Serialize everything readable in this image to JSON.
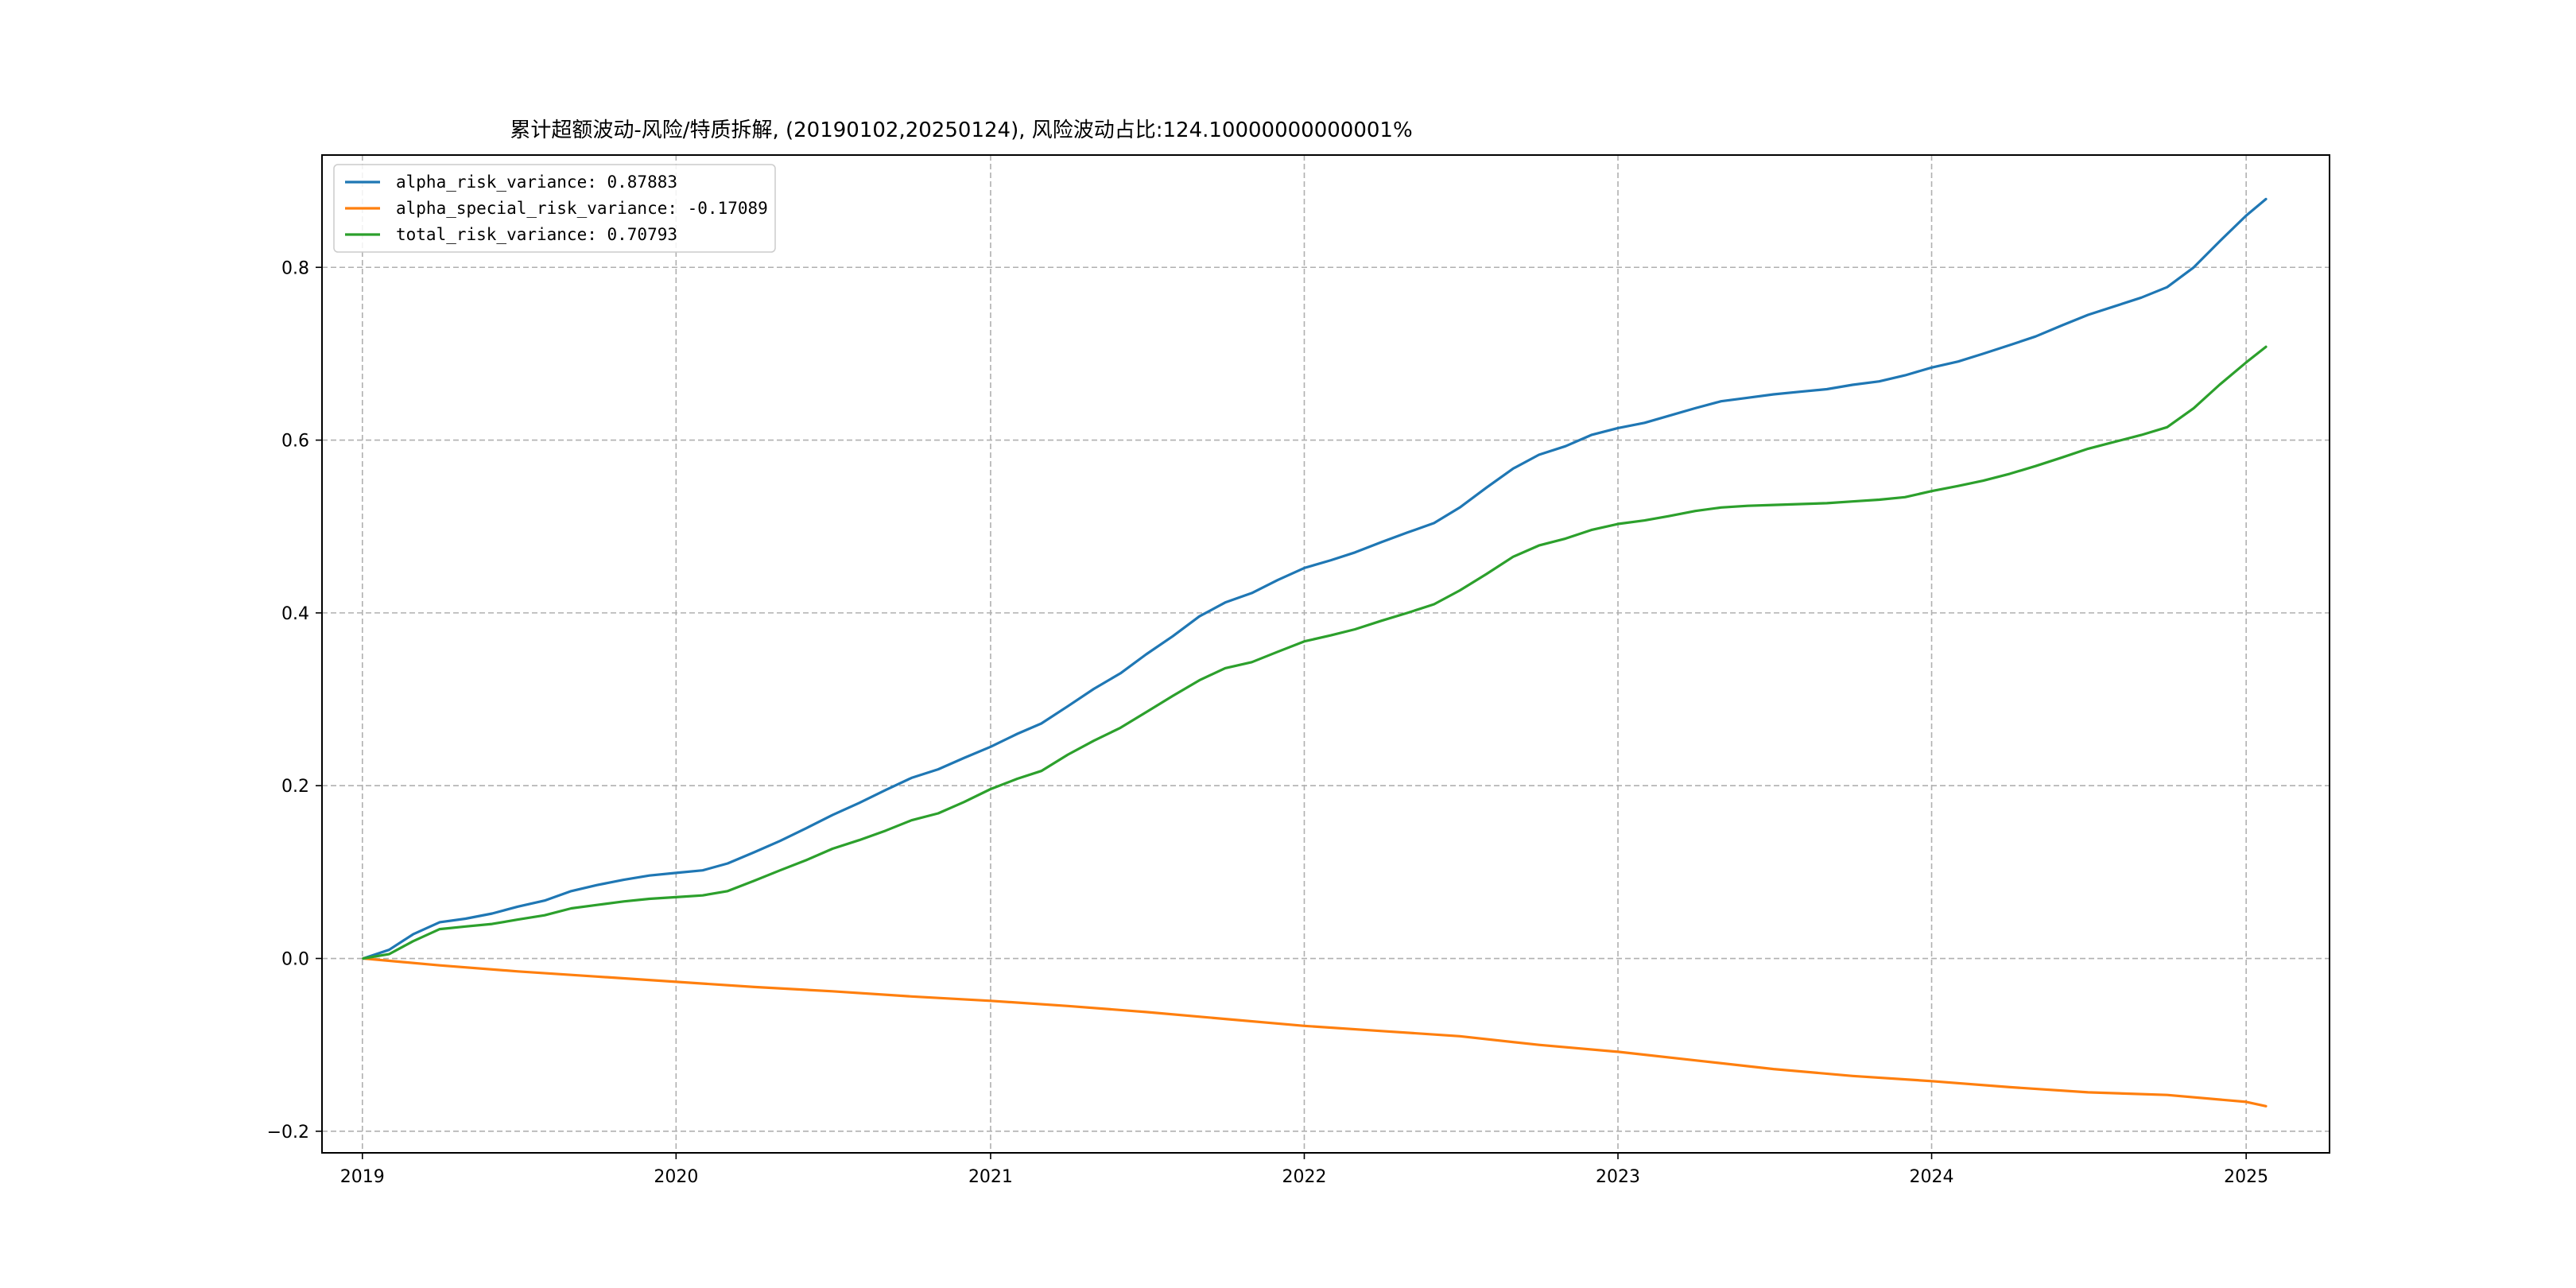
{
  "chart_data": {
    "type": "line",
    "title": "累计超额波动-风险/特质拆解, (20190102,20250124), 风险波动占比:124.10000000000001%",
    "xlabel": "",
    "ylabel": "",
    "x_ticks": [
      "2019",
      "2020",
      "2021",
      "2022",
      "2023",
      "2024",
      "2025"
    ],
    "y_ticks": [
      "−0.2",
      "0.0",
      "0.2",
      "0.4",
      "0.6",
      "0.8"
    ],
    "xlim": [
      "2018-11-15",
      "2025-04-08"
    ],
    "ylim": [
      -0.225,
      0.93
    ],
    "grid": true,
    "legend_position": "top-left",
    "series": [
      {
        "name": "alpha_risk_variance: 0.87883",
        "color": "#1f77b4",
        "points": [
          [
            "2019-01-02",
            0.0
          ],
          [
            "2019-02-01",
            0.01
          ],
          [
            "2019-03-01",
            0.028
          ],
          [
            "2019-04-01",
            0.042
          ],
          [
            "2019-05-01",
            0.046
          ],
          [
            "2019-06-01",
            0.052
          ],
          [
            "2019-07-01",
            0.06
          ],
          [
            "2019-08-01",
            0.067
          ],
          [
            "2019-09-01",
            0.078
          ],
          [
            "2019-10-01",
            0.085
          ],
          [
            "2019-11-01",
            0.091
          ],
          [
            "2019-12-01",
            0.096
          ],
          [
            "2020-01-01",
            0.099
          ],
          [
            "2020-02-01",
            0.102
          ],
          [
            "2020-03-01",
            0.11
          ],
          [
            "2020-04-01",
            0.123
          ],
          [
            "2020-05-01",
            0.136
          ],
          [
            "2020-06-01",
            0.151
          ],
          [
            "2020-07-01",
            0.166
          ],
          [
            "2020-08-01",
            0.18
          ],
          [
            "2020-09-01",
            0.195
          ],
          [
            "2020-10-01",
            0.209
          ],
          [
            "2020-11-01",
            0.219
          ],
          [
            "2020-12-01",
            0.232
          ],
          [
            "2021-01-01",
            0.245
          ],
          [
            "2021-02-01",
            0.26
          ],
          [
            "2021-03-01",
            0.272
          ],
          [
            "2021-04-01",
            0.292
          ],
          [
            "2021-05-01",
            0.312
          ],
          [
            "2021-06-01",
            0.33
          ],
          [
            "2021-07-01",
            0.352
          ],
          [
            "2021-08-01",
            0.373
          ],
          [
            "2021-09-01",
            0.396
          ],
          [
            "2021-10-01",
            0.412
          ],
          [
            "2021-11-01",
            0.423
          ],
          [
            "2021-12-01",
            0.438
          ],
          [
            "2022-01-01",
            0.452
          ],
          [
            "2022-02-01",
            0.461
          ],
          [
            "2022-03-01",
            0.47
          ],
          [
            "2022-04-01",
            0.482
          ],
          [
            "2022-05-01",
            0.493
          ],
          [
            "2022-06-01",
            0.504
          ],
          [
            "2022-07-01",
            0.522
          ],
          [
            "2022-08-01",
            0.545
          ],
          [
            "2022-09-01",
            0.567
          ],
          [
            "2022-10-01",
            0.583
          ],
          [
            "2022-11-01",
            0.593
          ],
          [
            "2022-12-01",
            0.606
          ],
          [
            "2023-01-01",
            0.614
          ],
          [
            "2023-02-01",
            0.62
          ],
          [
            "2023-03-01",
            0.628
          ],
          [
            "2023-04-01",
            0.637
          ],
          [
            "2023-05-01",
            0.645
          ],
          [
            "2023-06-01",
            0.649
          ],
          [
            "2023-07-01",
            0.653
          ],
          [
            "2023-08-01",
            0.656
          ],
          [
            "2023-09-01",
            0.659
          ],
          [
            "2023-10-01",
            0.664
          ],
          [
            "2023-11-01",
            0.668
          ],
          [
            "2023-12-01",
            0.675
          ],
          [
            "2024-01-01",
            0.684
          ],
          [
            "2024-02-01",
            0.691
          ],
          [
            "2024-03-01",
            0.7
          ],
          [
            "2024-04-01",
            0.71
          ],
          [
            "2024-05-01",
            0.72
          ],
          [
            "2024-06-01",
            0.733
          ],
          [
            "2024-07-01",
            0.745
          ],
          [
            "2024-08-01",
            0.755
          ],
          [
            "2024-09-01",
            0.765
          ],
          [
            "2024-10-01",
            0.777
          ],
          [
            "2024-11-01",
            0.8
          ],
          [
            "2024-12-01",
            0.83
          ],
          [
            "2025-01-01",
            0.86
          ],
          [
            "2025-01-24",
            0.879
          ]
        ]
      },
      {
        "name": "alpha_special_risk_variance: -0.17089",
        "color": "#ff7f0e",
        "points": [
          [
            "2019-01-02",
            0.0
          ],
          [
            "2019-04-01",
            -0.008
          ],
          [
            "2019-07-01",
            -0.015
          ],
          [
            "2019-10-01",
            -0.021
          ],
          [
            "2020-01-01",
            -0.027
          ],
          [
            "2020-04-01",
            -0.033
          ],
          [
            "2020-07-01",
            -0.038
          ],
          [
            "2020-10-01",
            -0.044
          ],
          [
            "2021-01-01",
            -0.049
          ],
          [
            "2021-04-01",
            -0.055
          ],
          [
            "2021-07-01",
            -0.062
          ],
          [
            "2021-10-01",
            -0.07
          ],
          [
            "2022-01-01",
            -0.078
          ],
          [
            "2022-04-01",
            -0.084
          ],
          [
            "2022-07-01",
            -0.09
          ],
          [
            "2022-10-01",
            -0.1
          ],
          [
            "2023-01-01",
            -0.108
          ],
          [
            "2023-04-01",
            -0.118
          ],
          [
            "2023-07-01",
            -0.128
          ],
          [
            "2023-10-01",
            -0.136
          ],
          [
            "2024-01-01",
            -0.142
          ],
          [
            "2024-04-01",
            -0.149
          ],
          [
            "2024-07-01",
            -0.155
          ],
          [
            "2024-10-01",
            -0.158
          ],
          [
            "2025-01-01",
            -0.166
          ],
          [
            "2025-01-24",
            -0.171
          ]
        ]
      },
      {
        "name": "total_risk_variance: 0.70793",
        "color": "#2ca02c",
        "points": [
          [
            "2019-01-02",
            0.0
          ],
          [
            "2019-02-01",
            0.005
          ],
          [
            "2019-03-01",
            0.02
          ],
          [
            "2019-04-01",
            0.034
          ],
          [
            "2019-05-01",
            0.037
          ],
          [
            "2019-06-01",
            0.04
          ],
          [
            "2019-07-01",
            0.045
          ],
          [
            "2019-08-01",
            0.05
          ],
          [
            "2019-09-01",
            0.058
          ],
          [
            "2019-10-01",
            0.062
          ],
          [
            "2019-11-01",
            0.066
          ],
          [
            "2019-12-01",
            0.069
          ],
          [
            "2020-01-01",
            0.071
          ],
          [
            "2020-02-01",
            0.073
          ],
          [
            "2020-03-01",
            0.078
          ],
          [
            "2020-04-01",
            0.09
          ],
          [
            "2020-05-01",
            0.102
          ],
          [
            "2020-06-01",
            0.114
          ],
          [
            "2020-07-01",
            0.127
          ],
          [
            "2020-08-01",
            0.137
          ],
          [
            "2020-09-01",
            0.148
          ],
          [
            "2020-10-01",
            0.16
          ],
          [
            "2020-11-01",
            0.168
          ],
          [
            "2020-12-01",
            0.181
          ],
          [
            "2021-01-01",
            0.196
          ],
          [
            "2021-02-01",
            0.208
          ],
          [
            "2021-03-01",
            0.217
          ],
          [
            "2021-04-01",
            0.236
          ],
          [
            "2021-05-01",
            0.252
          ],
          [
            "2021-06-01",
            0.267
          ],
          [
            "2021-07-01",
            0.285
          ],
          [
            "2021-08-01",
            0.304
          ],
          [
            "2021-09-01",
            0.322
          ],
          [
            "2021-10-01",
            0.336
          ],
          [
            "2021-11-01",
            0.343
          ],
          [
            "2021-12-01",
            0.355
          ],
          [
            "2022-01-01",
            0.367
          ],
          [
            "2022-02-01",
            0.374
          ],
          [
            "2022-03-01",
            0.381
          ],
          [
            "2022-04-01",
            0.391
          ],
          [
            "2022-05-01",
            0.4
          ],
          [
            "2022-06-01",
            0.41
          ],
          [
            "2022-07-01",
            0.426
          ],
          [
            "2022-08-01",
            0.445
          ],
          [
            "2022-09-01",
            0.465
          ],
          [
            "2022-10-01",
            0.478
          ],
          [
            "2022-11-01",
            0.486
          ],
          [
            "2022-12-01",
            0.496
          ],
          [
            "2023-01-01",
            0.503
          ],
          [
            "2023-02-01",
            0.507
          ],
          [
            "2023-03-01",
            0.512
          ],
          [
            "2023-04-01",
            0.518
          ],
          [
            "2023-05-01",
            0.522
          ],
          [
            "2023-06-01",
            0.524
          ],
          [
            "2023-07-01",
            0.525
          ],
          [
            "2023-08-01",
            0.526
          ],
          [
            "2023-09-01",
            0.527
          ],
          [
            "2023-10-01",
            0.529
          ],
          [
            "2023-11-01",
            0.531
          ],
          [
            "2023-12-01",
            0.534
          ],
          [
            "2024-01-01",
            0.541
          ],
          [
            "2024-02-01",
            0.547
          ],
          [
            "2024-03-01",
            0.553
          ],
          [
            "2024-04-01",
            0.561
          ],
          [
            "2024-05-01",
            0.57
          ],
          [
            "2024-06-01",
            0.58
          ],
          [
            "2024-07-01",
            0.59
          ],
          [
            "2024-08-01",
            0.598
          ],
          [
            "2024-09-01",
            0.606
          ],
          [
            "2024-10-01",
            0.615
          ],
          [
            "2024-11-01",
            0.637
          ],
          [
            "2024-12-01",
            0.664
          ],
          [
            "2025-01-01",
            0.69
          ],
          [
            "2025-01-24",
            0.708
          ]
        ]
      }
    ]
  }
}
